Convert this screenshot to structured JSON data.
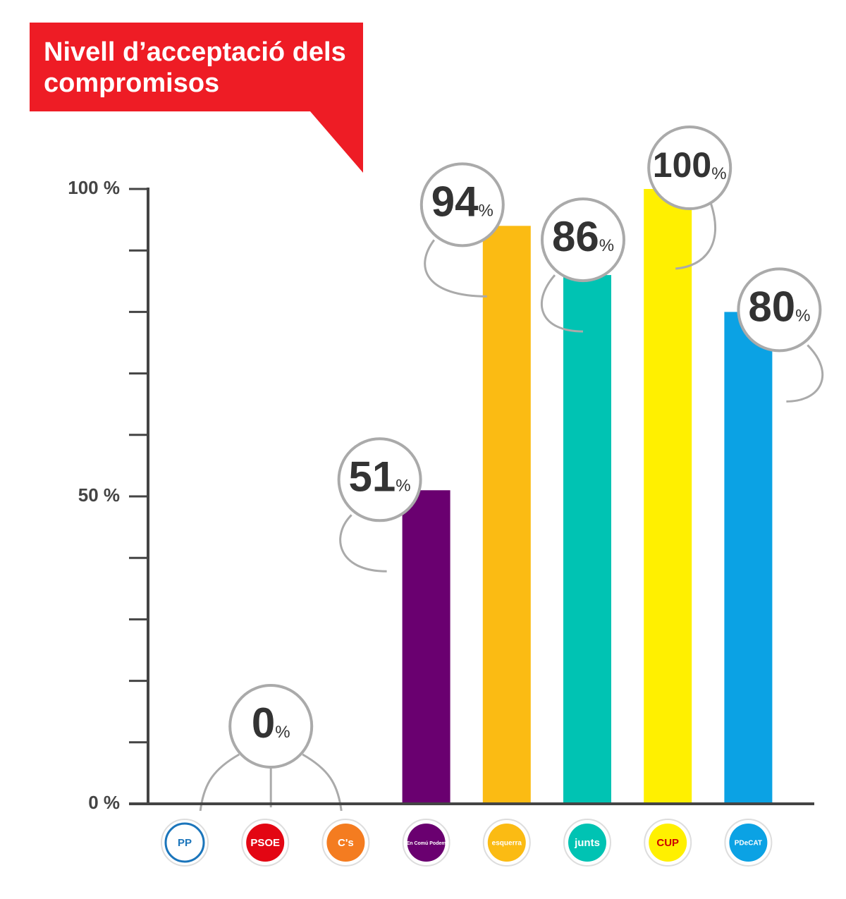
{
  "chart_data": {
    "type": "bar",
    "title": "Nivell d’acceptació dels compromisos",
    "categories": [
      "PP",
      "PSOE",
      "C's",
      "En Comú Podem",
      "esquerra",
      "junts",
      "CUP",
      "PDeCAT"
    ],
    "values": [
      0,
      0,
      0,
      51,
      94,
      86,
      100,
      80
    ],
    "value_labels": [
      null,
      "0%",
      null,
      "51%",
      "94%",
      "86%",
      "100%",
      "80%"
    ],
    "colors": [
      "#1b75bb",
      "#e30613",
      "#f47c20",
      "#6a0070",
      "#fbbb13",
      "#00c3b3",
      "#fff000",
      "#0ba2e4"
    ],
    "ylim": [
      0,
      100
    ],
    "yticks": [
      {
        "value": 0,
        "label": "0 %"
      },
      {
        "value": 50,
        "label": "50 %"
      },
      {
        "value": 100,
        "label": "100 %"
      }
    ],
    "yminorticks": [
      0,
      10,
      20,
      30,
      40,
      50,
      60,
      70,
      80,
      90,
      100
    ]
  }
}
